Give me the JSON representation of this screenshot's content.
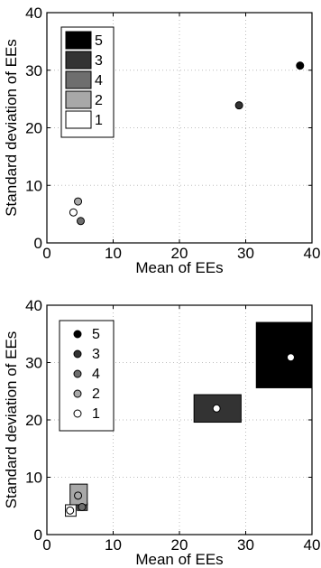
{
  "chart_data": [
    {
      "type": "scatter",
      "xlabel": "Mean of EEs",
      "ylabel": "Standard deviation of EEs",
      "xlim": [
        0,
        40
      ],
      "ylim": [
        0,
        40
      ],
      "xticks": [
        "0",
        "10",
        "20",
        "30",
        "40"
      ],
      "yticks": [
        "0",
        "10",
        "20",
        "30",
        "40"
      ],
      "grid": true,
      "legend": {
        "placement": "top-left",
        "entries": [
          "5",
          "3",
          "4",
          "2",
          "1"
        ],
        "style": "filled-squares"
      },
      "series": [
        {
          "name": "5",
          "color": "#000000",
          "points": [
            [
              38.2,
              30.8
            ]
          ]
        },
        {
          "name": "3",
          "color": "#333333",
          "points": [
            [
              29.0,
              23.9
            ]
          ]
        },
        {
          "name": "4",
          "color": "#6e6e6e",
          "points": [
            [
              5.1,
              3.8
            ]
          ]
        },
        {
          "name": "2",
          "color": "#a8a8a8",
          "points": [
            [
              4.7,
              7.2
            ]
          ]
        },
        {
          "name": "1",
          "color": "#ffffff",
          "points": [
            [
              4.0,
              5.3
            ]
          ]
        }
      ]
    },
    {
      "type": "scatter",
      "xlabel": "Mean of EEs",
      "ylabel": "Standard deviation of EEs",
      "xlim": [
        0,
        40
      ],
      "ylim": [
        0,
        40
      ],
      "xticks": [
        "0",
        "10",
        "20",
        "30",
        "40"
      ],
      "yticks": [
        "0",
        "10",
        "20",
        "30",
        "40"
      ],
      "grid": true,
      "legend": {
        "placement": "top-left",
        "entries": [
          "5",
          "3",
          "4",
          "2",
          "1"
        ],
        "style": "markers"
      },
      "series": [
        {
          "name": "5",
          "color": "#000000",
          "points": [
            [
              36.8,
              30.9
            ]
          ],
          "range_box": {
            "x": [
              31.6,
              40.0
            ],
            "y": [
              25.6,
              37.0
            ]
          }
        },
        {
          "name": "3",
          "color": "#333333",
          "points": [
            [
              25.6,
              22.0
            ]
          ],
          "range_box": {
            "x": [
              22.2,
              29.3
            ],
            "y": [
              19.6,
              24.4
            ]
          }
        },
        {
          "name": "4",
          "color": "#6e6e6e",
          "points": [
            [
              5.3,
              4.8
            ]
          ],
          "range_box": {
            "x": [
              4.6,
              6.1
            ],
            "y": [
              4.2,
              5.5
            ]
          }
        },
        {
          "name": "2",
          "color": "#a8a8a8",
          "points": [
            [
              4.7,
              6.8
            ]
          ],
          "range_box": {
            "x": [
              3.5,
              6.1
            ],
            "y": [
              5.2,
              8.8
            ]
          }
        },
        {
          "name": "1",
          "color": "#ffffff",
          "points": [
            [
              3.5,
              4.2
            ]
          ],
          "range_box": {
            "x": [
              2.8,
              4.4
            ],
            "y": [
              3.2,
              5.2
            ]
          }
        }
      ]
    }
  ]
}
